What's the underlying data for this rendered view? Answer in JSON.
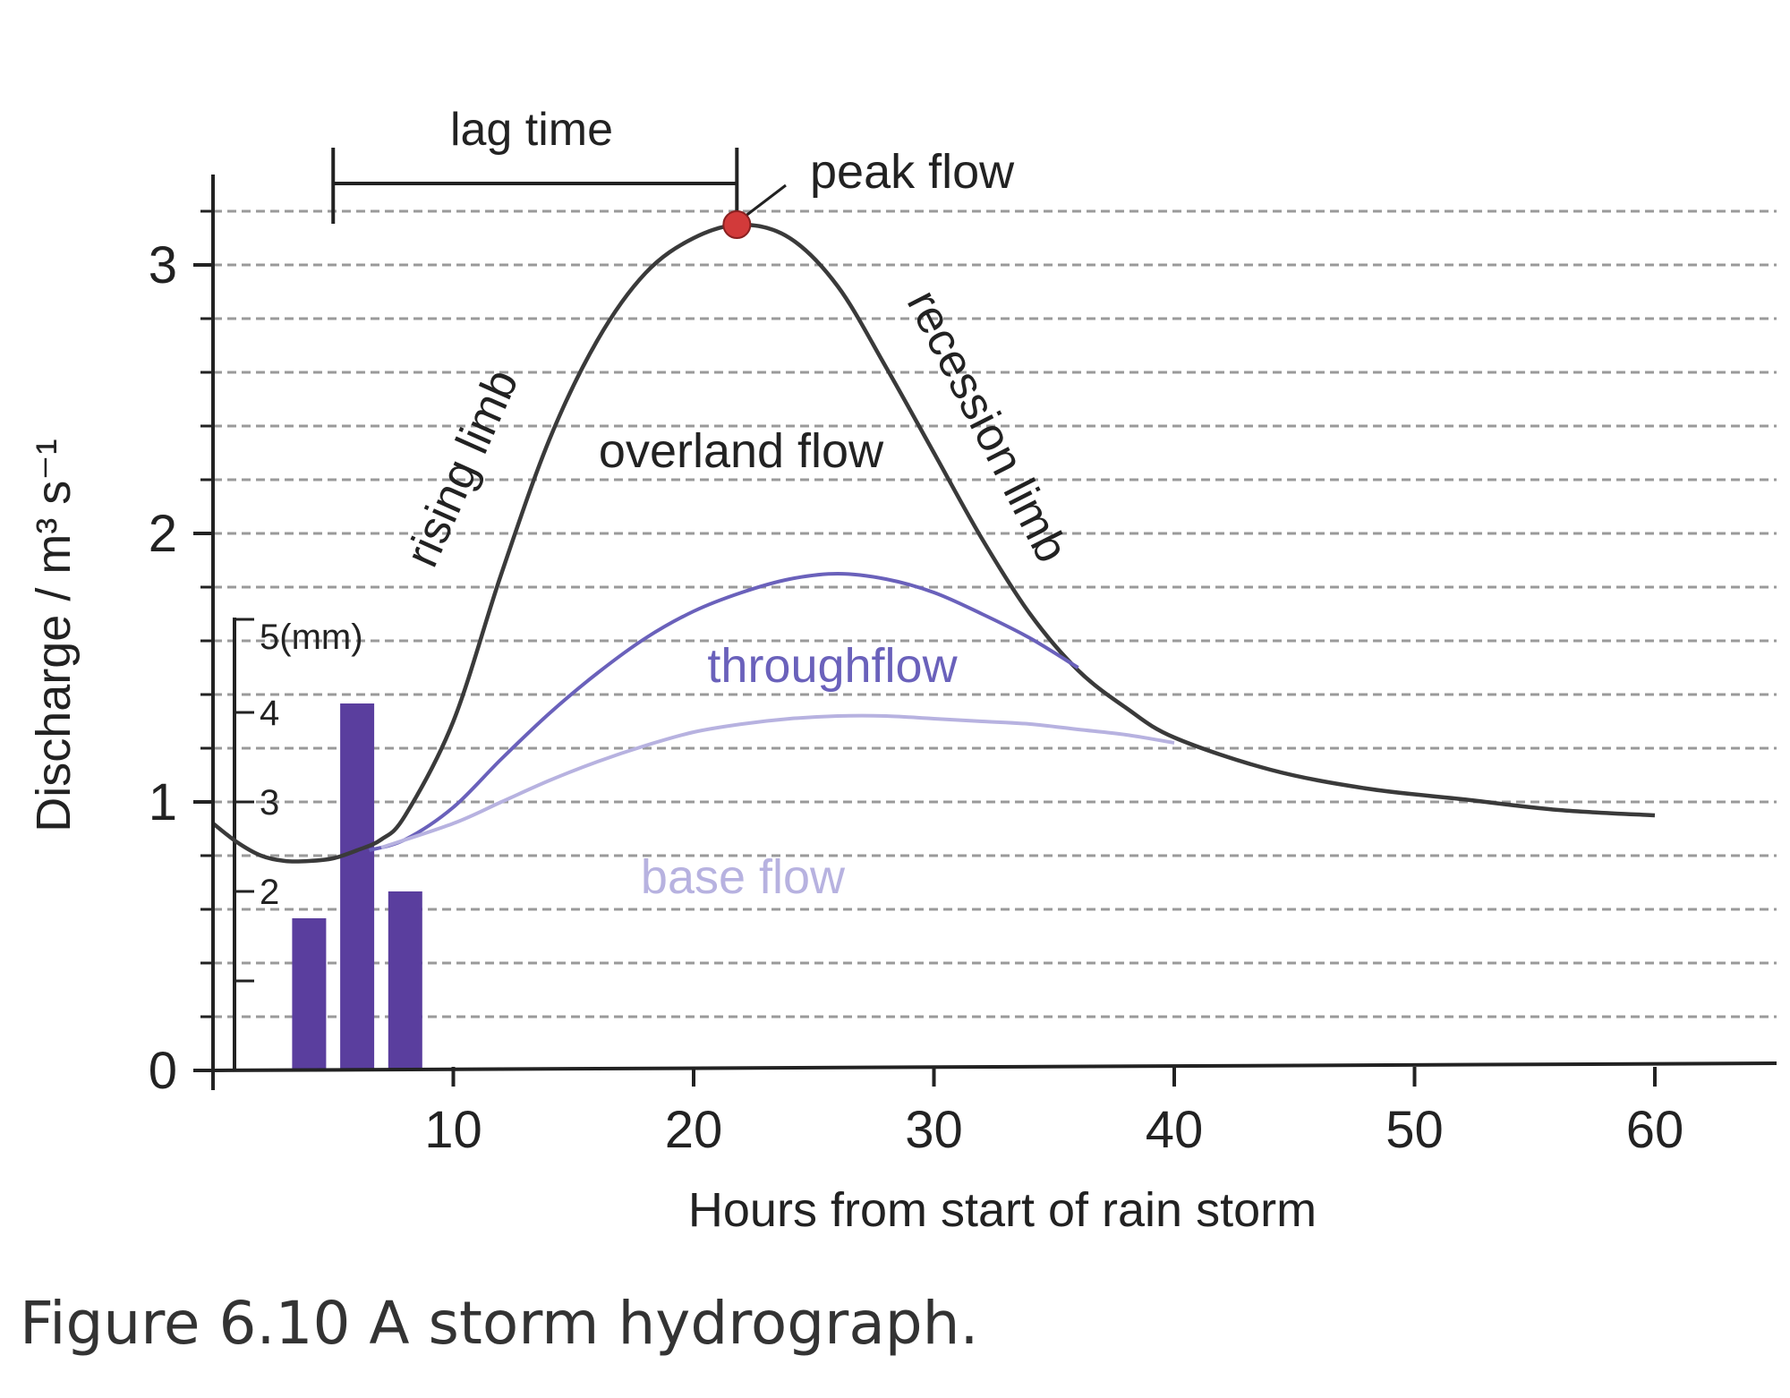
{
  "chart_data": {
    "type": "line",
    "title": "",
    "xlabel": "Hours from start of rain storm",
    "ylabel": "Discharge / m³ s⁻¹",
    "xlim": [
      0,
      65
    ],
    "ylim": [
      0,
      3.3
    ],
    "x_ticks": [
      10,
      20,
      30,
      40,
      50,
      60
    ],
    "y_ticks": [
      0,
      1,
      2,
      3
    ],
    "grid": true,
    "series": [
      {
        "name": "",
        "color": "#3a3a3a",
        "points": [
          [
            0,
            0.92
          ],
          [
            1,
            0.85
          ],
          [
            2,
            0.8
          ],
          [
            3,
            0.78
          ],
          [
            4,
            0.78
          ],
          [
            5,
            0.79
          ],
          [
            6,
            0.82
          ],
          [
            7,
            0.86
          ],
          [
            8,
            0.95
          ],
          [
            10,
            1.3
          ],
          [
            12,
            1.85
          ],
          [
            14,
            2.35
          ],
          [
            16,
            2.72
          ],
          [
            18,
            2.97
          ],
          [
            20,
            3.1
          ],
          [
            22,
            3.15
          ],
          [
            24,
            3.1
          ],
          [
            26,
            2.92
          ],
          [
            28,
            2.62
          ],
          [
            30,
            2.3
          ],
          [
            32,
            1.98
          ],
          [
            34,
            1.7
          ],
          [
            36,
            1.49
          ],
          [
            38,
            1.35
          ],
          [
            40,
            1.24
          ],
          [
            44,
            1.12
          ],
          [
            48,
            1.05
          ],
          [
            52,
            1.01
          ],
          [
            56,
            0.97
          ],
          [
            60,
            0.95
          ]
        ]
      },
      {
        "name": "",
        "color": "#6a61bb",
        "points": [
          [
            6.5,
            0.82
          ],
          [
            8,
            0.86
          ],
          [
            10,
            0.98
          ],
          [
            12,
            1.16
          ],
          [
            14,
            1.33
          ],
          [
            16,
            1.48
          ],
          [
            18,
            1.61
          ],
          [
            20,
            1.71
          ],
          [
            22,
            1.78
          ],
          [
            24,
            1.83
          ],
          [
            26,
            1.85
          ],
          [
            28,
            1.83
          ],
          [
            30,
            1.78
          ],
          [
            32,
            1.7
          ],
          [
            34,
            1.61
          ],
          [
            36,
            1.5
          ]
        ]
      },
      {
        "name": "",
        "color": "#b7b2e0",
        "points": [
          [
            7,
            0.83
          ],
          [
            10,
            0.92
          ],
          [
            12,
            1.0
          ],
          [
            14,
            1.08
          ],
          [
            16,
            1.15
          ],
          [
            18,
            1.21
          ],
          [
            20,
            1.26
          ],
          [
            22,
            1.29
          ],
          [
            24,
            1.31
          ],
          [
            26,
            1.32
          ],
          [
            28,
            1.32
          ],
          [
            30,
            1.31
          ],
          [
            32,
            1.3
          ],
          [
            34,
            1.29
          ],
          [
            36,
            1.27
          ],
          [
            38,
            1.25
          ],
          [
            40,
            1.22
          ]
        ]
      }
    ],
    "rainfall": {
      "axis_label": "5(mm)",
      "axis_ticks": [
        "2",
        "3",
        "4"
      ],
      "color": "#5a3e9e",
      "bars": [
        {
          "x": 4,
          "value": 1.7
        },
        {
          "x": 6,
          "value": 4.1
        },
        {
          "x": 8,
          "value": 2.0
        }
      ]
    },
    "peak": {
      "x": 21.8,
      "y": 3.15,
      "label": "peak flow",
      "color": "#d23a3a"
    },
    "lag_time": {
      "from_x": 5,
      "to_x": 21.8,
      "label": "lag time"
    },
    "annotations": {
      "rising_limb": "rising limb",
      "recession_limb": "recession limb",
      "overland_flow": "overland flow",
      "throughflow": "throughflow",
      "base_flow": "base flow"
    }
  },
  "caption": "Figure 6.10 A storm hydrograph."
}
